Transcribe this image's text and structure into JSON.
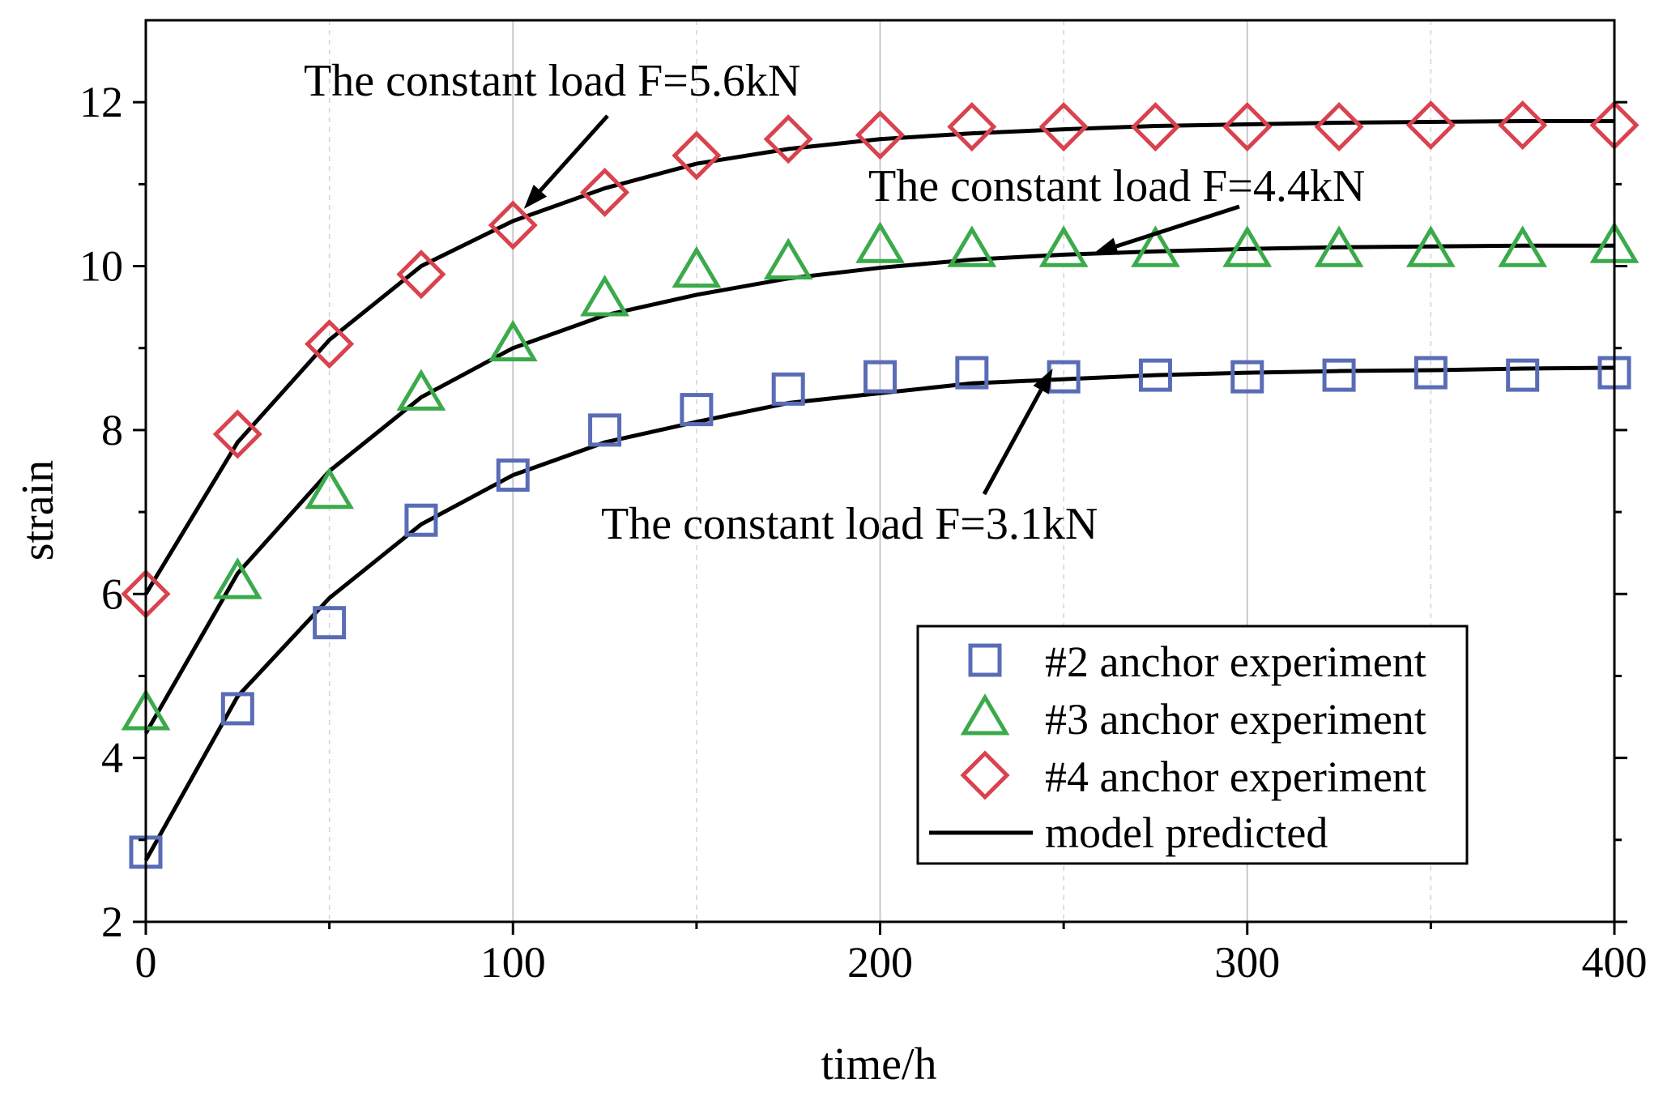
{
  "chart_data": {
    "type": "scatter",
    "xlabel": "time/h",
    "ylabel": "strain",
    "xlim": [
      0,
      400
    ],
    "ylim": [
      2,
      13
    ],
    "x_ticks": [
      0,
      100,
      200,
      300,
      400
    ],
    "x_minor_ticks": [
      50,
      150,
      250,
      350
    ],
    "y_ticks": [
      2,
      4,
      6,
      8,
      10,
      12
    ],
    "y_minor_ticks": [
      3,
      5,
      7,
      9,
      11
    ],
    "grid": "vertical",
    "legend_position": "bottom-right",
    "series": [
      {
        "name": "#2 anchor experiment",
        "marker": "square",
        "color": "#5a6cb5",
        "x": [
          0,
          25,
          50,
          75,
          100,
          125,
          150,
          175,
          200,
          225,
          250,
          275,
          300,
          325,
          350,
          375,
          400
        ],
        "y": [
          2.85,
          4.6,
          5.65,
          6.9,
          7.45,
          8.0,
          8.25,
          8.5,
          8.65,
          8.7,
          8.65,
          8.67,
          8.65,
          8.67,
          8.7,
          8.67,
          8.7
        ]
      },
      {
        "name": "#3 anchor experiment",
        "marker": "triangle",
        "color": "#3aaa4a",
        "x": [
          0,
          25,
          50,
          75,
          100,
          125,
          150,
          175,
          200,
          225,
          250,
          275,
          300,
          325,
          350,
          375,
          400
        ],
        "y": [
          4.55,
          6.15,
          7.25,
          8.45,
          9.05,
          9.6,
          9.95,
          10.05,
          10.25,
          10.2,
          10.2,
          10.2,
          10.2,
          10.2,
          10.2,
          10.2,
          10.25
        ]
      },
      {
        "name": "#4 anchor experiment",
        "marker": "diamond",
        "color": "#d9424f",
        "x": [
          0,
          25,
          50,
          75,
          100,
          125,
          150,
          175,
          200,
          225,
          250,
          275,
          300,
          325,
          350,
          375,
          400
        ],
        "y": [
          6.0,
          7.95,
          9.05,
          9.9,
          10.5,
          10.9,
          11.35,
          11.55,
          11.6,
          11.7,
          11.7,
          11.7,
          11.7,
          11.7,
          11.72,
          11.72,
          11.72
        ]
      },
      {
        "name": "model predicted",
        "marker": "line",
        "color": "#000000",
        "curves": [
          {
            "x": [
              0,
              25,
              50,
              75,
              100,
              125,
              150,
              175,
              200,
              225,
              250,
              275,
              300,
              325,
              350,
              375,
              400
            ],
            "y": [
              2.75,
              4.75,
              5.95,
              6.85,
              7.45,
              7.85,
              8.1,
              8.33,
              8.45,
              8.57,
              8.62,
              8.67,
              8.7,
              8.72,
              8.73,
              8.75,
              8.76
            ]
          },
          {
            "x": [
              0,
              25,
              50,
              75,
              100,
              125,
              150,
              175,
              200,
              225,
              250,
              275,
              300,
              325,
              350,
              375,
              400
            ],
            "y": [
              4.3,
              6.25,
              7.5,
              8.4,
              9.0,
              9.4,
              9.65,
              9.85,
              9.98,
              10.08,
              10.14,
              10.18,
              10.21,
              10.23,
              10.24,
              10.25,
              10.25
            ]
          },
          {
            "x": [
              0,
              25,
              50,
              75,
              100,
              125,
              150,
              175,
              200,
              225,
              250,
              275,
              300,
              325,
              350,
              375,
              400
            ],
            "y": [
              6.0,
              7.85,
              9.1,
              10.0,
              10.55,
              10.95,
              11.25,
              11.43,
              11.55,
              11.62,
              11.67,
              11.71,
              11.73,
              11.75,
              11.76,
              11.77,
              11.77
            ]
          }
        ]
      }
    ],
    "annotations": [
      {
        "text": "The constant load F=5.6kN",
        "arrow_to": [
          103,
          10.7
        ]
      },
      {
        "text": "The constant load F=4.4kN",
        "arrow_to": [
          258,
          10.15
        ]
      },
      {
        "text": "The constant load F=3.1kN",
        "arrow_to": [
          247,
          8.75
        ]
      }
    ]
  }
}
